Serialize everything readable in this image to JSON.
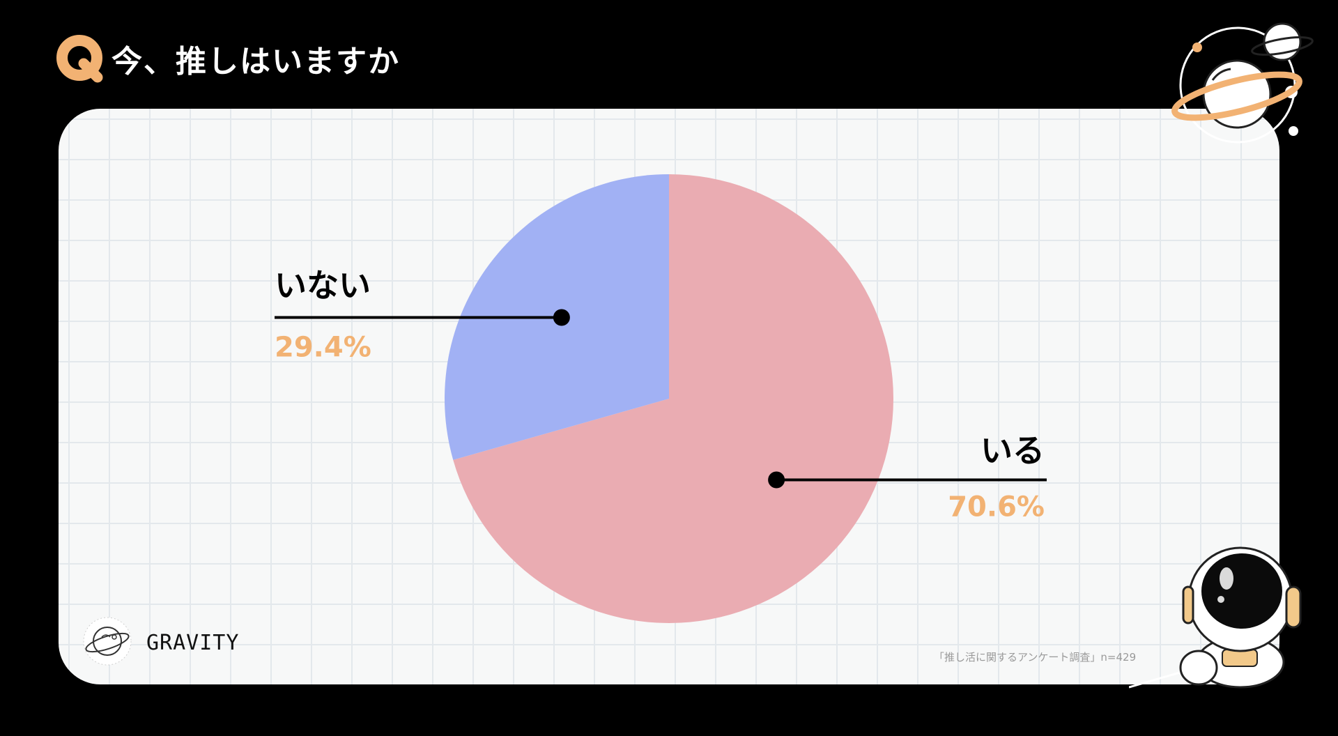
{
  "header": {
    "q_letter": "Q",
    "question": "今、推しはいますか"
  },
  "colors": {
    "accent": "#f2b273",
    "slice_yes": "#eaacb2",
    "slice_no": "#a1b1f4",
    "background": "#000000",
    "panel": "#f7f8f8"
  },
  "chart_data": {
    "type": "pie",
    "title": "今、推しはいますか",
    "start_angle_deg": 0,
    "direction": "clockwise",
    "slices": [
      {
        "label": "いる",
        "value": 70.6,
        "percent_label": "70.6%",
        "color": "#eaacb2",
        "label_side": "right"
      },
      {
        "label": "いない",
        "value": 29.4,
        "percent_label": "29.4%",
        "color": "#a1b1f4",
        "label_side": "left"
      }
    ]
  },
  "brand": {
    "name": "GRAVITY",
    "logo_icon": "planet-logo-icon"
  },
  "source": {
    "text": "「推し活に関するアンケート調査」n=429"
  },
  "decorations": {
    "top_right": "planets-icon",
    "bottom_right": "astronaut-icon"
  }
}
